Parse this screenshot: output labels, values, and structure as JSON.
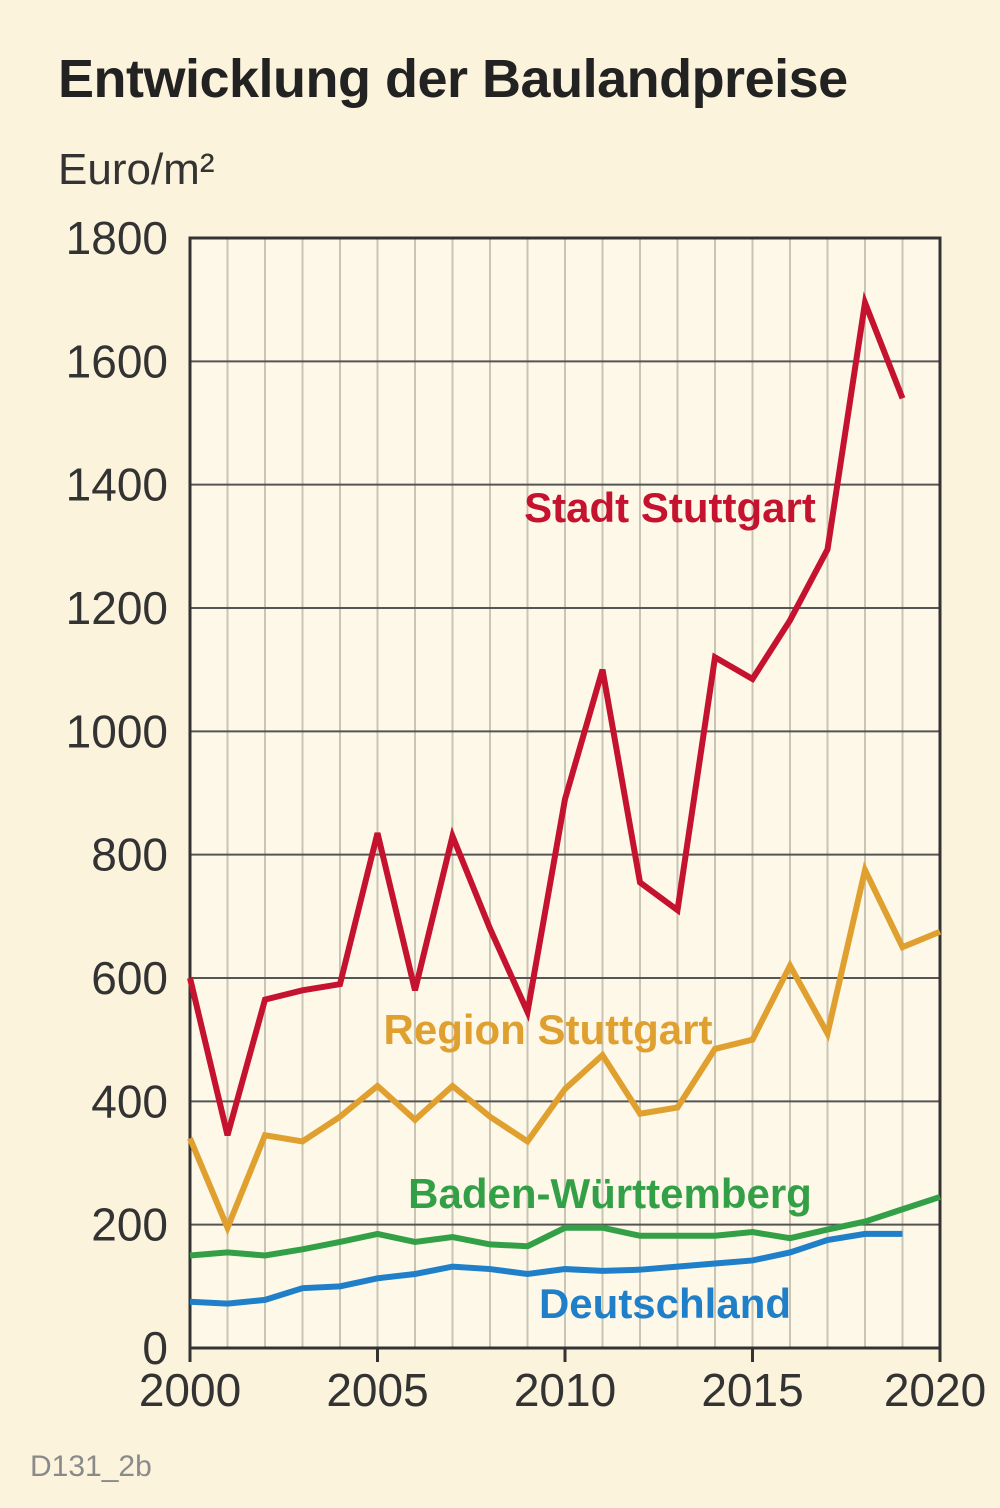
{
  "title": "Entwicklung der Baulandpreise",
  "unit_label": "Euro/m²",
  "figure_code": "D131_2b",
  "chart_data": {
    "type": "line",
    "title": "Entwicklung der Baulandpreise",
    "ylabel": "Euro/m²",
    "xlabel": "",
    "xlim": [
      2000,
      2020
    ],
    "ylim": [
      0,
      1800
    ],
    "x_ticks": [
      2000,
      2005,
      2010,
      2015,
      2020
    ],
    "y_ticks": [
      0,
      200,
      400,
      600,
      800,
      1000,
      1200,
      1400,
      1600,
      1800
    ],
    "grid": true,
    "legend": "inline labels",
    "series": [
      {
        "name": "Stadt Stuttgart",
        "color": "#c4122f",
        "x": [
          2000,
          2001,
          2002,
          2003,
          2004,
          2005,
          2006,
          2007,
          2008,
          2009,
          2010,
          2011,
          2012,
          2013,
          2014,
          2015,
          2016,
          2017,
          2018,
          2019
        ],
        "values": [
          600,
          345,
          565,
          580,
          590,
          835,
          580,
          830,
          680,
          545,
          890,
          1100,
          755,
          710,
          1120,
          1085,
          1180,
          1295,
          1695,
          1540
        ]
      },
      {
        "name": "Region Stuttgart",
        "color": "#e0a030",
        "x": [
          2000,
          2001,
          2002,
          2003,
          2004,
          2005,
          2006,
          2007,
          2008,
          2009,
          2010,
          2011,
          2012,
          2013,
          2014,
          2015,
          2016,
          2017,
          2018,
          2019,
          2020
        ],
        "values": [
          340,
          195,
          345,
          335,
          375,
          425,
          370,
          425,
          375,
          335,
          420,
          475,
          380,
          390,
          485,
          500,
          620,
          510,
          775,
          650,
          675
        ]
      },
      {
        "name": "Baden-Württemberg",
        "color": "#33a047",
        "x": [
          2000,
          2001,
          2002,
          2003,
          2004,
          2005,
          2006,
          2007,
          2008,
          2009,
          2010,
          2011,
          2012,
          2013,
          2014,
          2015,
          2016,
          2017,
          2018,
          2019,
          2020
        ],
        "values": [
          150,
          155,
          150,
          160,
          172,
          185,
          172,
          180,
          168,
          165,
          195,
          195,
          182,
          182,
          182,
          188,
          178,
          192,
          205,
          225,
          245
        ]
      },
      {
        "name": "Deutschland",
        "color": "#1f7fc8",
        "x": [
          2000,
          2001,
          2002,
          2003,
          2004,
          2005,
          2006,
          2007,
          2008,
          2009,
          2010,
          2011,
          2012,
          2013,
          2014,
          2015,
          2016,
          2017,
          2018,
          2019
        ],
        "values": [
          75,
          72,
          78,
          97,
          100,
          113,
          120,
          132,
          128,
          120,
          128,
          125,
          127,
          132,
          137,
          142,
          155,
          175,
          185,
          185
        ]
      }
    ]
  }
}
